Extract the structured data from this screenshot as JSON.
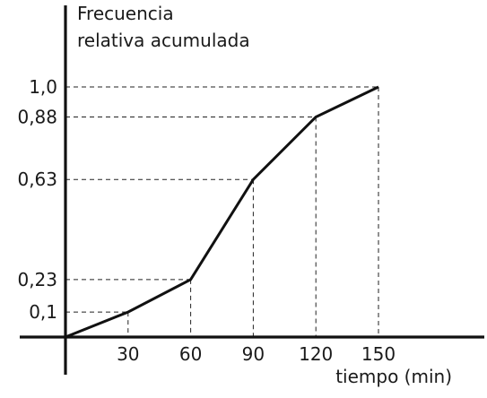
{
  "chart_data": {
    "type": "line",
    "title": "",
    "ylabel_lines": [
      "Frecuencia",
      "relativa acumulada"
    ],
    "xlabel": "tiempo (min)",
    "x": [
      0,
      30,
      60,
      90,
      120,
      150
    ],
    "x_tick_labels": [
      "30",
      "60",
      "90",
      "120",
      "150"
    ],
    "y_tick_labels": [
      "0,1",
      "0,23",
      "0,63",
      "0,88",
      "1,0"
    ],
    "series": [
      {
        "values": [
          0,
          0.1,
          0.23,
          0.63,
          0.88,
          1.0
        ],
        "color": "#111111"
      }
    ],
    "xlim": [
      0,
      150
    ],
    "ylim": [
      0,
      1.0
    ],
    "guide_lines": "dashed",
    "grid": false,
    "legend": "none"
  }
}
